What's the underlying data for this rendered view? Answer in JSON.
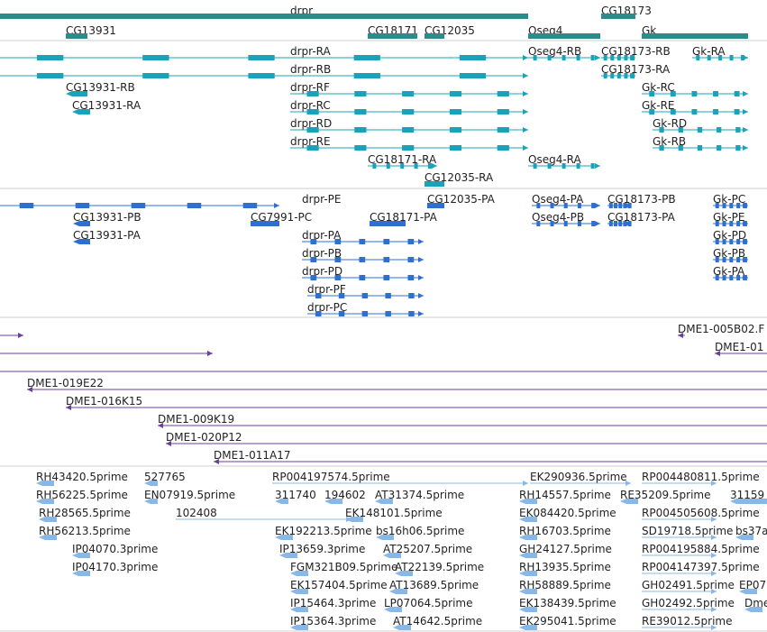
{
  "colors": {
    "gene": "#2e8b8b",
    "mrna": "#1aa3b8",
    "cds": "#2f6fd0",
    "clone": "#6a3fa0",
    "est": "#8ab8e6",
    "divider": "#cfcfcf",
    "text": "#222222"
  },
  "tracks": [
    {
      "name": "gene-track",
      "color": "gene",
      "features": [
        {
          "label": "drpr"
        },
        {
          "label": "CG13931"
        },
        {
          "label": "CG18171"
        },
        {
          "label": "CG12035"
        },
        {
          "label": "Oseg4"
        },
        {
          "label": "CG18173"
        },
        {
          "label": "Gk"
        }
      ]
    },
    {
      "name": "mrna-track",
      "color": "mrna",
      "features": [
        {
          "label": "drpr-RA"
        },
        {
          "label": "drpr-RB"
        },
        {
          "label": "drpr-RF"
        },
        {
          "label": "drpr-RC"
        },
        {
          "label": "drpr-RD"
        },
        {
          "label": "drpr-RE"
        },
        {
          "label": "CG13931-RB"
        },
        {
          "label": "CG13931-RA"
        },
        {
          "label": "CG18171-RA"
        },
        {
          "label": "CG12035-RA"
        },
        {
          "label": "Oseg4-RB"
        },
        {
          "label": "Oseg4-RA"
        },
        {
          "label": "CG18173-RB"
        },
        {
          "label": "CG18173-RA"
        },
        {
          "label": "Gk-RA"
        },
        {
          "label": "Gk-RC"
        },
        {
          "label": "Gk-RE"
        },
        {
          "label": "Gk-RD"
        },
        {
          "label": "Gk-RB"
        }
      ]
    },
    {
      "name": "cds-track",
      "color": "cds",
      "features": [
        {
          "label": "drpr-PE"
        },
        {
          "label": "CG12035-PA"
        },
        {
          "label": "CG13931-PB"
        },
        {
          "label": "CG13931-PA"
        },
        {
          "label": "CG7991-PC"
        },
        {
          "label": "CG18171-PA"
        },
        {
          "label": "drpr-PA"
        },
        {
          "label": "drpr-PB"
        },
        {
          "label": "drpr-PD"
        },
        {
          "label": "drpr-PF"
        },
        {
          "label": "drpr-PC"
        },
        {
          "label": "Oseg4-PA"
        },
        {
          "label": "Oseg4-PB"
        },
        {
          "label": "CG18173-PB"
        },
        {
          "label": "CG18173-PA"
        },
        {
          "label": "Gk-PC"
        },
        {
          "label": "Gk-PE"
        },
        {
          "label": "Gk-PD"
        },
        {
          "label": "Gk-PB"
        },
        {
          "label": "Gk-PA"
        }
      ]
    },
    {
      "name": "clone-track",
      "color": "clone",
      "features": [
        {
          "label": "DME1-005B02.F"
        },
        {
          "label": "DME1-01"
        },
        {
          "label": "DME1-019E22"
        },
        {
          "label": "DME1-016K15"
        },
        {
          "label": "DME1-009K19"
        },
        {
          "label": "DME1-020P12"
        },
        {
          "label": "DME1-011A17"
        }
      ]
    },
    {
      "name": "est-track",
      "color": "est",
      "features": [
        {
          "label": "RH43420.5prime"
        },
        {
          "label": "527765"
        },
        {
          "label": "RP004197574.5prime"
        },
        {
          "label": "EK290936.5prime"
        },
        {
          "label": "RP004480811.5prime"
        },
        {
          "label": "RH56225.5prime"
        },
        {
          "label": "EN07919.5prime"
        },
        {
          "label": "311740"
        },
        {
          "label": "194602"
        },
        {
          "label": "AT31374.5prime"
        },
        {
          "label": "RH14557.5prime"
        },
        {
          "label": "RE35209.5prime"
        },
        {
          "label": "31159"
        },
        {
          "label": "RH28565.5prime"
        },
        {
          "label": "102408"
        },
        {
          "label": "EK148101.5prime"
        },
        {
          "label": "EK084420.5prime"
        },
        {
          "label": "RP004505608.5prime"
        },
        {
          "label": "RH56213.5prime"
        },
        {
          "label": "EK192213.5prime"
        },
        {
          "label": "bs16h06.5prime"
        },
        {
          "label": "RH16703.5prime"
        },
        {
          "label": "SD19718.5prime"
        },
        {
          "label": "bs37a"
        },
        {
          "label": "IP04070.3prime"
        },
        {
          "label": "IP13659.3prime"
        },
        {
          "label": "AT25207.5prime"
        },
        {
          "label": "GH24127.5prime"
        },
        {
          "label": "RP004195884.5prime"
        },
        {
          "label": "IP04170.3prime"
        },
        {
          "label": "FGM321B09.5prime"
        },
        {
          "label": "AT22139.5prime"
        },
        {
          "label": "RH13935.5prime"
        },
        {
          "label": "RP004147397.5prime"
        },
        {
          "label": "EK157404.5prime"
        },
        {
          "label": "AT13689.5prime"
        },
        {
          "label": "RH58889.5prime"
        },
        {
          "label": "GH02491.5prime"
        },
        {
          "label": "EP07"
        },
        {
          "label": "IP15464.3prime"
        },
        {
          "label": "LP07064.5prime"
        },
        {
          "label": "EK138439.5prime"
        },
        {
          "label": "GH02492.5prime"
        },
        {
          "label": "Dme"
        },
        {
          "label": "IP15364.3prime"
        },
        {
          "label": "AT14642.5prime"
        },
        {
          "label": "EK295041.5prime"
        },
        {
          "label": "RE39012.5prime"
        }
      ]
    }
  ]
}
